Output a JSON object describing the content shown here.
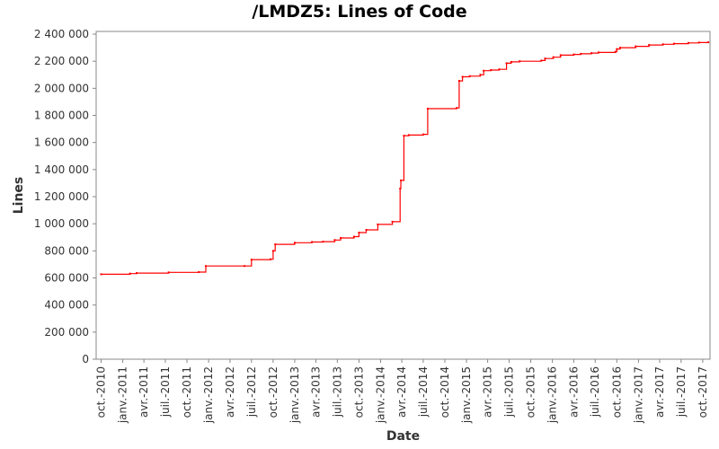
{
  "chart_data": {
    "type": "line",
    "title": "/LMDZ5: Lines of Code",
    "xlabel": "Date",
    "ylabel": "Lines",
    "ylim": [
      0,
      2420000
    ],
    "xlim": [
      "2010-09-10",
      "2017-11-01"
    ],
    "y_ticks": [
      {
        "value": 0,
        "label": "0"
      },
      {
        "value": 200000,
        "label": "200 000"
      },
      {
        "value": 400000,
        "label": "400 000"
      },
      {
        "value": 600000,
        "label": "600 000"
      },
      {
        "value": 800000,
        "label": "800 000"
      },
      {
        "value": 1000000,
        "label": "1 000 000"
      },
      {
        "value": 1200000,
        "label": "1 200 000"
      },
      {
        "value": 1400000,
        "label": "1 400 000"
      },
      {
        "value": 1600000,
        "label": "1 600 000"
      },
      {
        "value": 1800000,
        "label": "1 800 000"
      },
      {
        "value": 2000000,
        "label": "2 000 000"
      },
      {
        "value": 2200000,
        "label": "2 200 000"
      },
      {
        "value": 2400000,
        "label": "2 400 000"
      }
    ],
    "x_ticks": [
      {
        "date": "2010-10-01",
        "label": "oct.-2010"
      },
      {
        "date": "2011-01-01",
        "label": "janv.-2011"
      },
      {
        "date": "2011-04-01",
        "label": "avr.-2011"
      },
      {
        "date": "2011-07-01",
        "label": "juil.-2011"
      },
      {
        "date": "2011-10-01",
        "label": "oct.-2011"
      },
      {
        "date": "2012-01-01",
        "label": "janv.-2012"
      },
      {
        "date": "2012-04-01",
        "label": "avr.-2012"
      },
      {
        "date": "2012-07-01",
        "label": "juil.-2012"
      },
      {
        "date": "2012-10-01",
        "label": "oct.-2012"
      },
      {
        "date": "2013-01-01",
        "label": "janv.-2013"
      },
      {
        "date": "2013-04-01",
        "label": "avr.-2013"
      },
      {
        "date": "2013-07-01",
        "label": "juil.-2013"
      },
      {
        "date": "2013-10-01",
        "label": "oct.-2013"
      },
      {
        "date": "2014-01-01",
        "label": "janv.-2014"
      },
      {
        "date": "2014-04-01",
        "label": "avr.-2014"
      },
      {
        "date": "2014-07-01",
        "label": "juil.-2014"
      },
      {
        "date": "2014-10-01",
        "label": "oct.-2014"
      },
      {
        "date": "2015-01-01",
        "label": "janv.-2015"
      },
      {
        "date": "2015-04-01",
        "label": "avr.-2015"
      },
      {
        "date": "2015-07-01",
        "label": "juil.-2015"
      },
      {
        "date": "2015-10-01",
        "label": "oct.-2015"
      },
      {
        "date": "2016-01-01",
        "label": "janv.-2016"
      },
      {
        "date": "2016-04-01",
        "label": "avr.-2016"
      },
      {
        "date": "2016-07-01",
        "label": "juil.-2016"
      },
      {
        "date": "2016-10-01",
        "label": "oct.-2016"
      },
      {
        "date": "2017-01-01",
        "label": "janv.-2017"
      },
      {
        "date": "2017-04-01",
        "label": "avr.-2017"
      },
      {
        "date": "2017-07-01",
        "label": "juil.-2017"
      },
      {
        "date": "2017-10-01",
        "label": "oct.-2017"
      }
    ],
    "grid": false,
    "series": [
      {
        "color": "#ff0000",
        "step": true,
        "points": [
          [
            "2010-10-01",
            627000
          ],
          [
            "2011-02-01",
            632000
          ],
          [
            "2011-03-01",
            636000
          ],
          [
            "2011-07-15",
            641000
          ],
          [
            "2011-11-20",
            643000
          ],
          [
            "2011-12-20",
            688000
          ],
          [
            "2012-06-01",
            688000
          ],
          [
            "2012-07-01",
            735000
          ],
          [
            "2012-09-20",
            738000
          ],
          [
            "2012-10-01",
            800000
          ],
          [
            "2012-10-10",
            848000
          ],
          [
            "2013-01-01",
            860000
          ],
          [
            "2013-03-15",
            865000
          ],
          [
            "2013-05-01",
            868000
          ],
          [
            "2013-06-20",
            880000
          ],
          [
            "2013-07-15",
            895000
          ],
          [
            "2013-09-10",
            905000
          ],
          [
            "2013-10-01",
            935000
          ],
          [
            "2013-11-01",
            955000
          ],
          [
            "2013-12-20",
            995000
          ],
          [
            "2014-02-20",
            1015000
          ],
          [
            "2014-03-25",
            1260000
          ],
          [
            "2014-03-28",
            1320000
          ],
          [
            "2014-04-10",
            1650000
          ],
          [
            "2014-05-01",
            1655000
          ],
          [
            "2014-07-01",
            1660000
          ],
          [
            "2014-07-20",
            1850000
          ],
          [
            "2014-11-20",
            1855000
          ],
          [
            "2014-12-01",
            2055000
          ],
          [
            "2014-12-15",
            2085000
          ],
          [
            "2015-01-15",
            2090000
          ],
          [
            "2015-03-01",
            2100000
          ],
          [
            "2015-03-15",
            2130000
          ],
          [
            "2015-04-15",
            2135000
          ],
          [
            "2015-05-20",
            2140000
          ],
          [
            "2015-06-20",
            2185000
          ],
          [
            "2015-07-10",
            2195000
          ],
          [
            "2015-08-15",
            2200000
          ],
          [
            "2015-11-15",
            2205000
          ],
          [
            "2015-12-01",
            2220000
          ],
          [
            "2016-01-05",
            2230000
          ],
          [
            "2016-02-05",
            2245000
          ],
          [
            "2016-04-01",
            2250000
          ],
          [
            "2016-05-01",
            2255000
          ],
          [
            "2016-06-15",
            2260000
          ],
          [
            "2016-07-15",
            2265000
          ],
          [
            "2016-09-25",
            2270000
          ],
          [
            "2016-10-01",
            2290000
          ],
          [
            "2016-10-15",
            2300000
          ],
          [
            "2016-12-20",
            2310000
          ],
          [
            "2017-02-15",
            2320000
          ],
          [
            "2017-04-15",
            2325000
          ],
          [
            "2017-06-01",
            2330000
          ],
          [
            "2017-08-01",
            2335000
          ],
          [
            "2017-09-15",
            2338000
          ],
          [
            "2017-10-25",
            2340000
          ]
        ]
      }
    ]
  }
}
